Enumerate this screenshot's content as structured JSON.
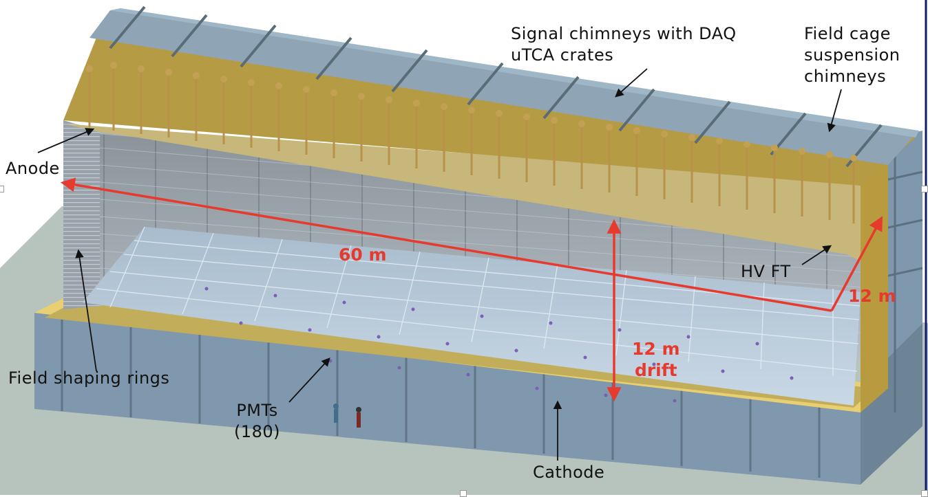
{
  "labels": {
    "signal_chimneys": [
      "Signal chimneys with DAQ",
      "uTCA crates"
    ],
    "field_cage": [
      "Field cage",
      "suspension",
      "chimneys"
    ],
    "anode": "Anode",
    "field_shaping_rings": "Field shaping rings",
    "pmts": [
      "PMTs",
      "(180)"
    ],
    "cathode": "Cathode",
    "hv_ft": "HV FT"
  },
  "dimensions": {
    "length": "60 m",
    "width": "12 m",
    "drift": [
      "12 m",
      "drift"
    ]
  },
  "colors": {
    "dimension_arrow": "#e63a2e",
    "cryostat_frame": "#7f98ad",
    "insulation_gold": "#b89b3e",
    "floor": "#b7c4bd",
    "field_cage": "#a9b3bc",
    "cathode_grid": "#b9ccdf"
  }
}
